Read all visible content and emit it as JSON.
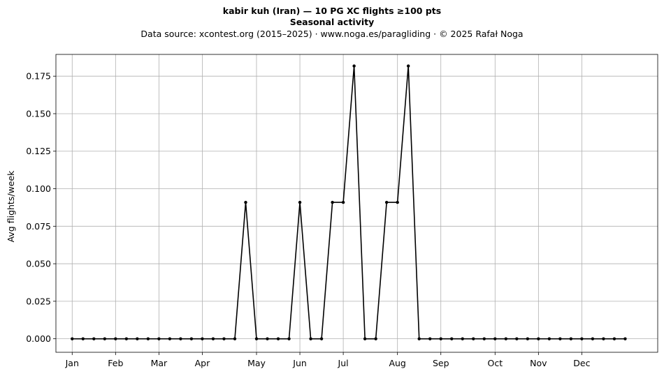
{
  "chart_data": {
    "type": "line",
    "title": "kabir kuh (Iran)  —  10 PG XC flights ≥100 pts",
    "subtitle": "Seasonal activity",
    "caption": "Data source: xcontest.org (2015–2025)  ·  www.noga.es/paragliding  ·  © 2025 Rafał Noga",
    "xlabel": "",
    "ylabel": "Avg flights/week",
    "ylim": [
      -0.009,
      0.1895
    ],
    "xlim": [
      -1.5,
      54
    ],
    "grid": true,
    "x_ticks": [
      {
        "label": "Jan",
        "x": 0
      },
      {
        "label": "Feb",
        "x": 4
      },
      {
        "label": "Mar",
        "x": 8
      },
      {
        "label": "Apr",
        "x": 12
      },
      {
        "label": "May",
        "x": 17
      },
      {
        "label": "Jun",
        "x": 21
      },
      {
        "label": "Jul",
        "x": 25
      },
      {
        "label": "Aug",
        "x": 30
      },
      {
        "label": "Sep",
        "x": 34
      },
      {
        "label": "Oct",
        "x": 39
      },
      {
        "label": "Nov",
        "x": 43
      },
      {
        "label": "Dec",
        "x": 47
      }
    ],
    "y_ticks": [
      0.0,
      0.025,
      0.05,
      0.075,
      0.1,
      0.125,
      0.15,
      0.175
    ],
    "y_tick_labels": [
      "0.000",
      "0.025",
      "0.050",
      "0.075",
      "0.100",
      "0.125",
      "0.150",
      "0.175"
    ],
    "series": [
      {
        "color": "#000000",
        "marker": "circle",
        "x": [
          0,
          1,
          2,
          3,
          4,
          5,
          6,
          7,
          8,
          9,
          10,
          11,
          12,
          13,
          14,
          15,
          16,
          17,
          18,
          19,
          20,
          21,
          22,
          23,
          24,
          25,
          26,
          27,
          28,
          29,
          30,
          31,
          32,
          33,
          34,
          35,
          36,
          37,
          38,
          39,
          40,
          41,
          42,
          43,
          44,
          45,
          46,
          47,
          48,
          49,
          50,
          51
        ],
        "values": [
          0,
          0,
          0,
          0,
          0,
          0,
          0,
          0,
          0,
          0,
          0,
          0,
          0,
          0,
          0,
          0,
          0.0909,
          0,
          0,
          0,
          0,
          0.0909,
          0,
          0,
          0.0909,
          0.0909,
          0.1818,
          0,
          0,
          0.0909,
          0.0909,
          0.1818,
          0,
          0,
          0,
          0,
          0,
          0,
          0,
          0,
          0,
          0,
          0,
          0,
          0,
          0,
          0,
          0,
          0,
          0,
          0,
          0
        ]
      }
    ]
  }
}
